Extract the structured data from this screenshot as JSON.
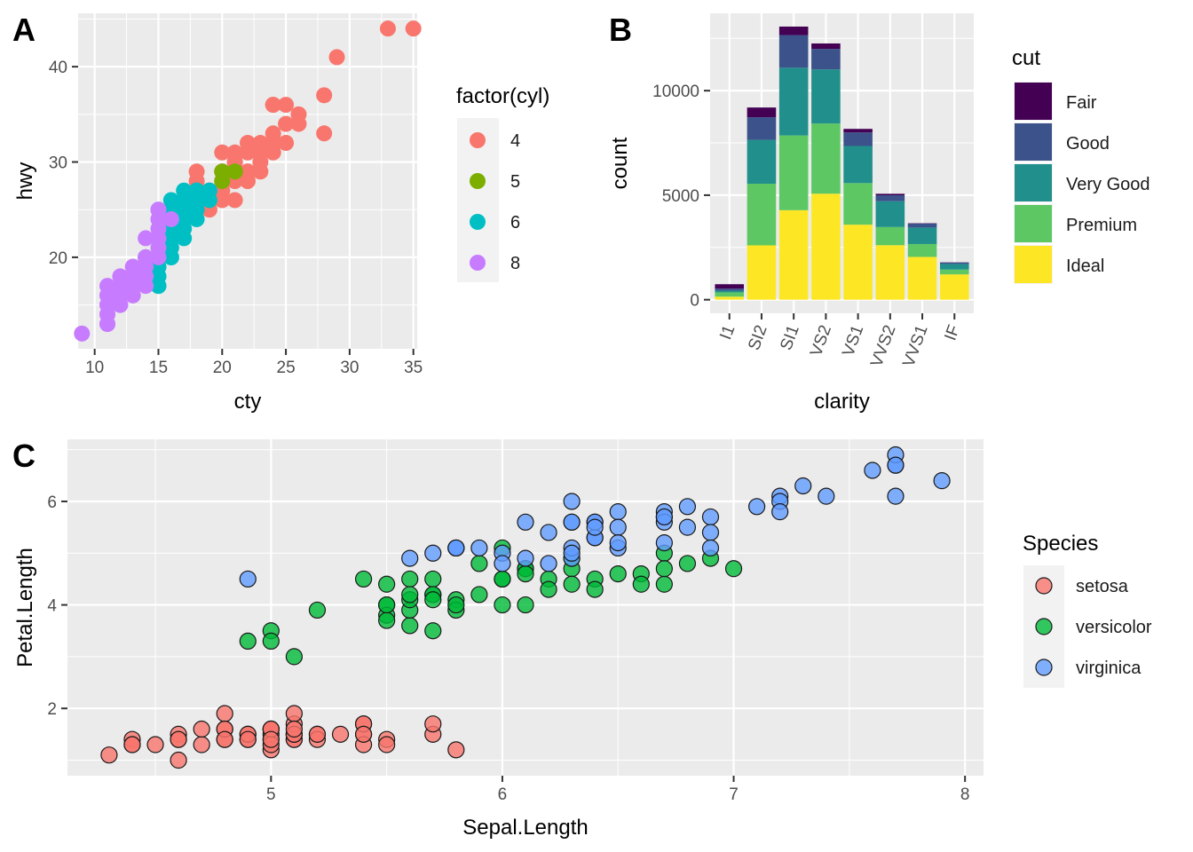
{
  "chart_data": [
    {
      "panel": "A",
      "type": "scatter",
      "xlabel": "cty",
      "ylabel": "hwy",
      "xlim": [
        8.7,
        35.3
      ],
      "ylim": [
        10.4,
        45.6
      ],
      "x_ticks": [
        10,
        15,
        20,
        25,
        30,
        35
      ],
      "y_ticks": [
        20,
        30,
        40
      ],
      "grid": true,
      "legend": {
        "title": "factor(cyl)",
        "position": "right",
        "entries": [
          "4",
          "5",
          "6",
          "8"
        ],
        "colors": [
          "#F8766D",
          "#7CAE00",
          "#00BFC4",
          "#C77CFF"
        ]
      },
      "series": [
        {
          "name": "4",
          "color": "#F8766D",
          "x": [
            18,
            21,
            20,
            21,
            18,
            18,
            18,
            21,
            24,
            24,
            22,
            21,
            23,
            24,
            20,
            28,
            24,
            26,
            33,
            35,
            29,
            26,
            22,
            24,
            19,
            21,
            20,
            22,
            28,
            21,
            19,
            20,
            23,
            22,
            23,
            25,
            21,
            19,
            20,
            17,
            15,
            19,
            20,
            20,
            21,
            22,
            23,
            25,
            25
          ],
          "y": [
            29,
            29,
            31,
            30,
            26,
            26,
            28,
            29,
            32,
            33,
            29,
            28,
            30,
            36,
            29,
            37,
            36,
            35,
            44,
            44,
            41,
            34,
            31,
            31,
            27,
            26,
            27,
            28,
            33,
            30,
            27,
            29,
            29,
            29,
            31,
            32,
            31,
            25,
            26,
            24,
            20,
            26,
            28,
            27,
            29,
            32,
            32,
            34,
            36
          ]
        },
        {
          "name": "5",
          "color": "#7CAE00",
          "x": [
            20,
            20,
            21,
            21
          ],
          "y": [
            28,
            29,
            29,
            29
          ]
        },
        {
          "name": "6",
          "color": "#00BFC4",
          "x": [
            16,
            18,
            16,
            17,
            16,
            17,
            16,
            15,
            15,
            16,
            16,
            17,
            18,
            17,
            15,
            15,
            15,
            19,
            18,
            18,
            17,
            17,
            18,
            16,
            15,
            14,
            16,
            18,
            17,
            19,
            18,
            16,
            15,
            14
          ],
          "y": [
            26,
            27,
            25,
            26,
            23,
            24,
            22,
            19,
            17,
            20,
            21,
            25,
            27,
            27,
            19,
            18,
            17,
            27,
            26,
            25,
            23,
            22,
            24,
            25,
            18,
            20,
            20,
            26,
            25,
            26,
            27,
            25,
            22,
            20
          ]
        },
        {
          "name": "8",
          "color": "#C77CFF",
          "x": [
            15,
            14,
            11,
            12,
            15,
            11,
            13,
            9,
            11,
            11,
            12,
            13,
            14,
            12,
            11,
            13,
            12,
            14,
            15,
            14,
            11,
            11,
            12,
            13,
            11,
            15,
            16,
            15,
            14,
            12,
            13,
            12,
            11,
            13,
            15,
            15,
            13,
            14
          ],
          "y": [
            25,
            20,
            15,
            17,
            23,
            14,
            17,
            12,
            16,
            15,
            17,
            19,
            18,
            17,
            14,
            18,
            16,
            19,
            24,
            22,
            17,
            13,
            15,
            17,
            16,
            21,
            24,
            20,
            17,
            18,
            16,
            15,
            13,
            19,
            22,
            25,
            17,
            20
          ]
        }
      ]
    },
    {
      "panel": "B",
      "type": "bar",
      "stacked": true,
      "xlabel": "clarity",
      "ylabel": "count",
      "categories": [
        "I1",
        "SI2",
        "SI1",
        "VS2",
        "VS1",
        "VVS2",
        "VVS1",
        "IF"
      ],
      "ylim": [
        -650,
        13700
      ],
      "y_ticks": [
        0,
        5000,
        10000
      ],
      "grid": true,
      "legend": {
        "title": "cut",
        "position": "right"
      },
      "series": [
        {
          "name": "Ideal",
          "color": "#FDE725",
          "values": [
            146,
            2598,
            4282,
            5071,
            3589,
            2606,
            2047,
            1212
          ]
        },
        {
          "name": "Premium",
          "color": "#5DC863",
          "values": [
            205,
            2949,
            3575,
            3357,
            1989,
            870,
            616,
            230
          ]
        },
        {
          "name": "Very Good",
          "color": "#21908C",
          "values": [
            84,
            2100,
            3240,
            2591,
            1775,
            1235,
            789,
            268
          ]
        },
        {
          "name": "Good",
          "color": "#3B528B",
          "values": [
            96,
            1081,
            1560,
            978,
            648,
            286,
            186,
            71
          ]
        },
        {
          "name": "Fair",
          "color": "#440154",
          "values": [
            210,
            466,
            408,
            261,
            170,
            69,
            17,
            9
          ]
        }
      ],
      "legend_order": [
        "Fair",
        "Good",
        "Very Good",
        "Premium",
        "Ideal"
      ]
    },
    {
      "panel": "C",
      "type": "scatter",
      "xlabel": "Sepal.Length",
      "ylabel": "Petal.Length",
      "xlim": [
        4.12,
        8.08
      ],
      "ylim": [
        0.7,
        7.2
      ],
      "x_ticks": [
        5,
        6,
        7,
        8
      ],
      "y_ticks": [
        2,
        4,
        6
      ],
      "grid": true,
      "point_alpha": 0.8,
      "legend": {
        "title": "Species",
        "position": "right",
        "entries": [
          "setosa",
          "versicolor",
          "virginica"
        ],
        "colors": [
          "#F8766D",
          "#00BA38",
          "#619CFF"
        ]
      },
      "series": [
        {
          "name": "setosa",
          "color": "#F8766D",
          "x": [
            5.1,
            4.9,
            4.7,
            4.6,
            5.0,
            5.4,
            4.6,
            5.0,
            4.4,
            4.9,
            5.4,
            4.8,
            4.8,
            4.3,
            5.8,
            5.7,
            5.4,
            5.1,
            5.7,
            5.1,
            5.4,
            5.1,
            4.6,
            5.1,
            4.8,
            5.0,
            5.0,
            5.2,
            5.2,
            4.7,
            4.8,
            5.4,
            5.2,
            5.5,
            4.9,
            5.0,
            5.5,
            4.9,
            4.4,
            5.1,
            5.0,
            4.5,
            4.4,
            5.0,
            5.1,
            4.8,
            5.1,
            4.6,
            5.3,
            5.0
          ],
          "y": [
            1.4,
            1.4,
            1.3,
            1.5,
            1.4,
            1.7,
            1.4,
            1.5,
            1.4,
            1.5,
            1.5,
            1.6,
            1.4,
            1.1,
            1.2,
            1.5,
            1.3,
            1.4,
            1.7,
            1.5,
            1.7,
            1.5,
            1.0,
            1.7,
            1.9,
            1.6,
            1.6,
            1.5,
            1.4,
            1.6,
            1.6,
            1.5,
            1.5,
            1.4,
            1.5,
            1.2,
            1.3,
            1.4,
            1.3,
            1.5,
            1.3,
            1.3,
            1.3,
            1.6,
            1.9,
            1.4,
            1.6,
            1.4,
            1.5,
            1.4
          ]
        },
        {
          "name": "versicolor",
          "color": "#00BA38",
          "x": [
            7.0,
            6.4,
            6.9,
            5.5,
            6.5,
            5.7,
            6.3,
            4.9,
            6.6,
            5.2,
            5.0,
            5.9,
            6.0,
            6.1,
            5.6,
            6.7,
            5.6,
            5.8,
            6.2,
            5.6,
            5.9,
            6.1,
            6.3,
            6.1,
            6.4,
            6.6,
            6.8,
            6.7,
            6.0,
            5.7,
            5.5,
            5.5,
            5.8,
            6.0,
            5.4,
            6.0,
            6.7,
            6.3,
            5.6,
            5.5,
            5.5,
            6.1,
            5.8,
            5.0,
            5.6,
            5.7,
            5.7,
            6.2,
            5.1,
            5.7
          ],
          "y": [
            4.7,
            4.5,
            4.9,
            4.0,
            4.6,
            4.5,
            4.7,
            3.3,
            4.6,
            3.9,
            3.5,
            4.2,
            4.0,
            4.7,
            3.6,
            4.4,
            4.5,
            4.1,
            4.5,
            3.9,
            4.8,
            4.0,
            4.9,
            4.7,
            4.3,
            4.4,
            4.8,
            5.0,
            4.5,
            3.5,
            3.8,
            3.7,
            3.9,
            5.1,
            4.5,
            4.5,
            4.7,
            4.4,
            4.1,
            4.0,
            4.4,
            4.6,
            4.0,
            3.3,
            4.2,
            4.2,
            4.2,
            4.3,
            3.0,
            4.1
          ]
        },
        {
          "name": "virginica",
          "color": "#619CFF",
          "x": [
            6.3,
            5.8,
            7.1,
            6.3,
            6.5,
            7.6,
            4.9,
            7.3,
            6.7,
            7.2,
            6.5,
            6.4,
            6.8,
            5.7,
            5.8,
            6.4,
            6.5,
            7.7,
            7.7,
            6.0,
            6.9,
            5.6,
            7.7,
            6.3,
            6.7,
            7.2,
            6.2,
            6.1,
            6.4,
            7.2,
            7.4,
            7.9,
            6.4,
            6.3,
            6.1,
            7.7,
            6.3,
            6.4,
            6.0,
            6.9,
            6.7,
            6.9,
            5.8,
            6.8,
            6.7,
            6.7,
            6.3,
            6.5,
            6.2,
            5.9
          ],
          "y": [
            6.0,
            5.1,
            5.9,
            5.6,
            5.8,
            6.6,
            4.5,
            6.3,
            5.8,
            6.1,
            5.1,
            5.3,
            5.5,
            5.0,
            5.1,
            5.3,
            5.5,
            6.7,
            6.9,
            5.0,
            5.7,
            4.9,
            6.7,
            4.9,
            5.7,
            6.0,
            4.8,
            4.9,
            5.6,
            5.8,
            6.1,
            6.4,
            5.6,
            5.1,
            5.6,
            6.1,
            5.6,
            5.5,
            4.8,
            5.4,
            5.6,
            5.1,
            5.1,
            5.9,
            5.7,
            5.2,
            5.0,
            5.2,
            5.4,
            5.1
          ]
        }
      ]
    }
  ]
}
